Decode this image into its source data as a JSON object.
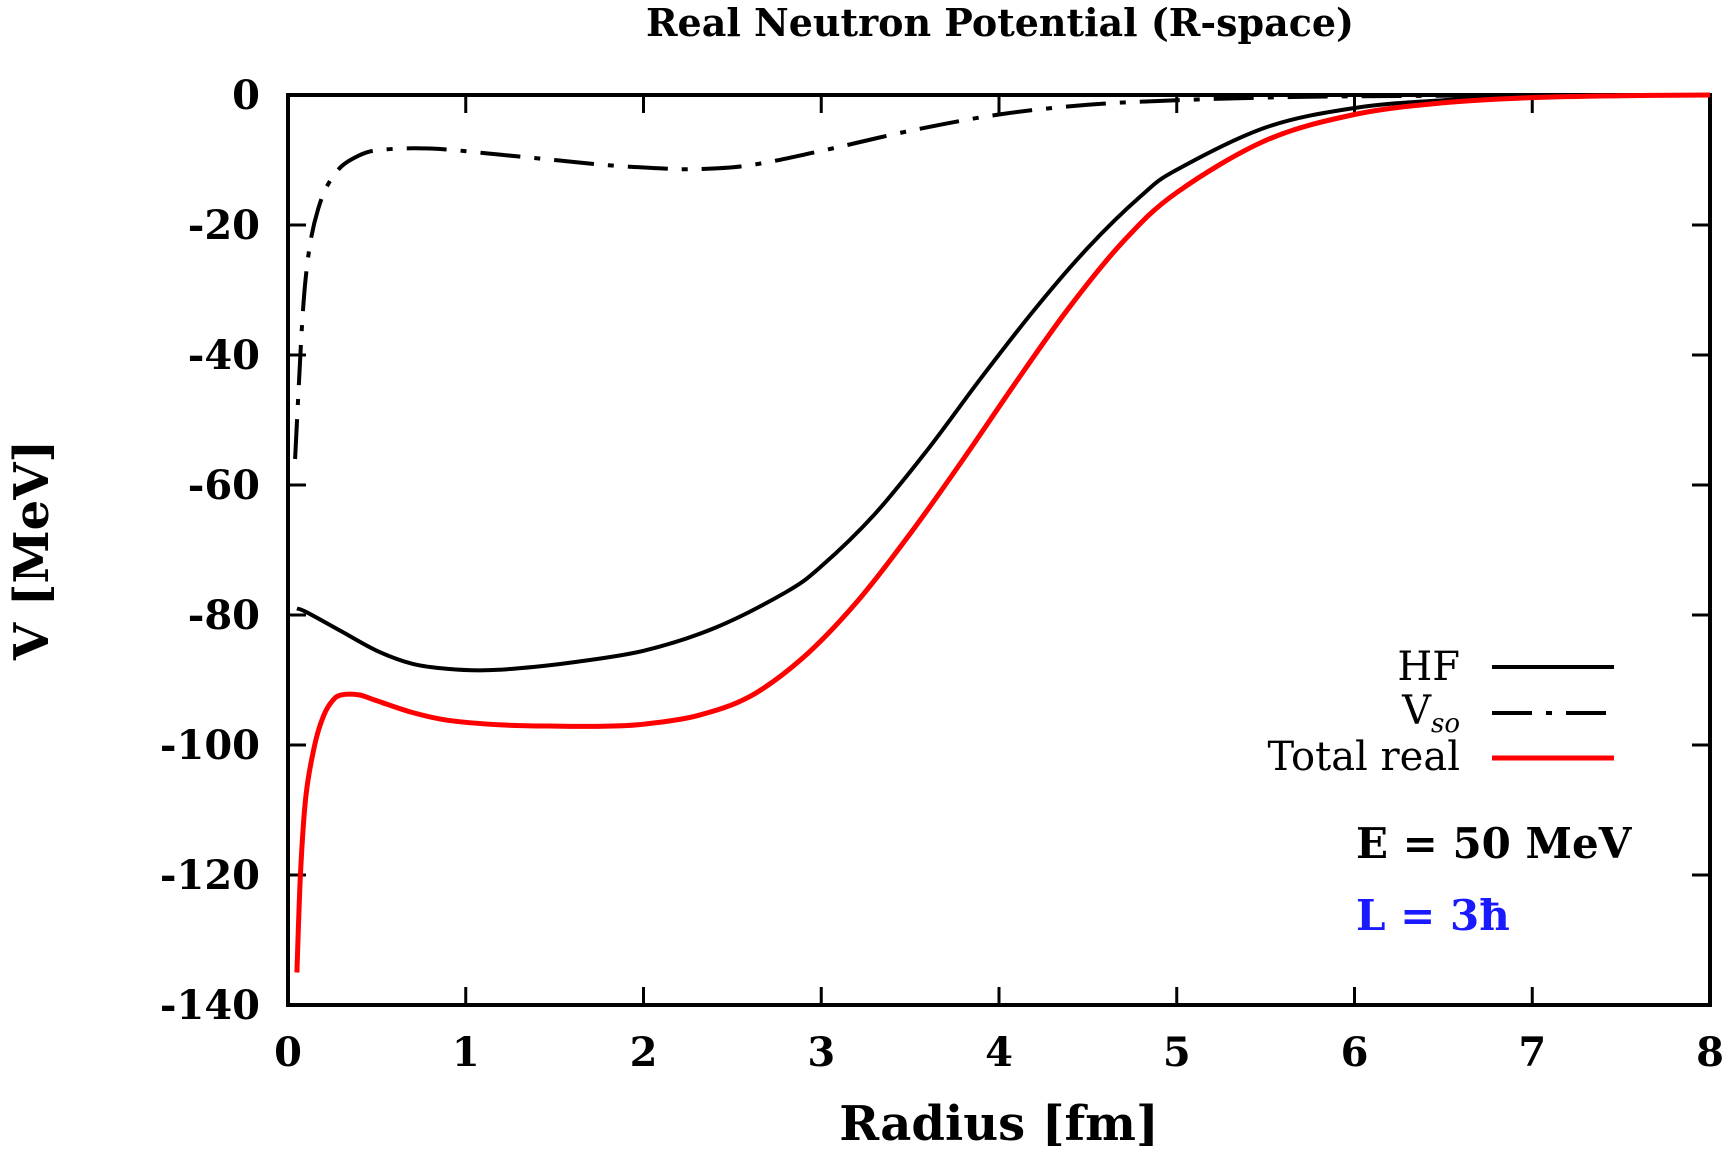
{
  "chart_data": {
    "type": "line",
    "title": "Real Neutron Potential (R-space)",
    "xlabel": "Radius [fm]",
    "ylabel": "V [MeV]",
    "xlim": [
      0,
      8
    ],
    "ylim": [
      -140,
      0
    ],
    "xticks": [
      "0",
      "1",
      "2",
      "3",
      "4",
      "5",
      "6",
      "7",
      "8"
    ],
    "yticks": [
      "0",
      "-20",
      "-40",
      "-60",
      "-80",
      "-100",
      "-120",
      "-140"
    ],
    "grid": false,
    "legend_position": "bottom-right",
    "series": [
      {
        "name": "HF",
        "style": "solid",
        "color": "#000000",
        "x": [
          0.05,
          0.1,
          0.3,
          0.5,
          0.7,
          0.9,
          1.1,
          1.3,
          1.6,
          2.0,
          2.4,
          2.8,
          3.0,
          3.3,
          3.6,
          3.9,
          4.2,
          4.5,
          4.8,
          5.0,
          5.5,
          6.0,
          6.5,
          7.0,
          7.5,
          8.0
        ],
        "y": [
          -79,
          -79.5,
          -82.5,
          -85.5,
          -87.5,
          -88.3,
          -88.5,
          -88.2,
          -87.3,
          -85.5,
          -82,
          -76.5,
          -72.5,
          -64.5,
          -54.5,
          -43.5,
          -33,
          -23.5,
          -15.5,
          -11.5,
          -5,
          -2,
          -0.8,
          -0.3,
          -0.1,
          0
        ]
      },
      {
        "name": "V_so",
        "style": "dash-dot",
        "color": "#000000",
        "x": [
          0.04,
          0.06,
          0.08,
          0.1,
          0.13,
          0.17,
          0.22,
          0.3,
          0.4,
          0.5,
          0.7,
          0.9,
          1.2,
          1.5,
          1.8,
          2.1,
          2.3,
          2.6,
          3.0,
          3.5,
          4.0,
          4.5,
          5.0,
          5.5,
          6.0,
          7.0,
          8.0
        ],
        "y": [
          -56,
          -45,
          -35,
          -28,
          -22,
          -17.5,
          -14,
          -11,
          -9.3,
          -8.5,
          -8.2,
          -8.4,
          -9.2,
          -10,
          -10.8,
          -11.3,
          -11.4,
          -10.8,
          -8.6,
          -5.5,
          -3,
          -1.5,
          -0.8,
          -0.4,
          -0.2,
          -0.05,
          0
        ]
      },
      {
        "name": "Total real",
        "style": "solid",
        "color": "#ff0000",
        "x": [
          0.05,
          0.07,
          0.1,
          0.15,
          0.2,
          0.25,
          0.3,
          0.4,
          0.5,
          0.7,
          0.9,
          1.2,
          1.5,
          1.8,
          2.0,
          2.3,
          2.6,
          2.9,
          3.2,
          3.5,
          3.8,
          4.1,
          4.4,
          4.7,
          5.0,
          5.5,
          6.0,
          6.5,
          7.0,
          7.5,
          8.0
        ],
        "y": [
          -135,
          -120,
          -108,
          -100,
          -95.5,
          -93.2,
          -92.3,
          -92.3,
          -93.2,
          -95,
          -96.2,
          -96.9,
          -97.1,
          -97.1,
          -96.8,
          -95.5,
          -92.5,
          -86.5,
          -78,
          -67.5,
          -56,
          -44,
          -32.5,
          -22.5,
          -15,
          -7,
          -3,
          -1.2,
          -0.4,
          -0.1,
          0
        ]
      }
    ],
    "annotations": [
      {
        "text": "E = 50 MeV",
        "color": "#000000"
      },
      {
        "text": "L = 3ħ",
        "color": "#1a1aff"
      }
    ]
  },
  "legend": {
    "hf": "HF",
    "vso_main": "V",
    "vso_sub": "so",
    "total": "Total real"
  }
}
